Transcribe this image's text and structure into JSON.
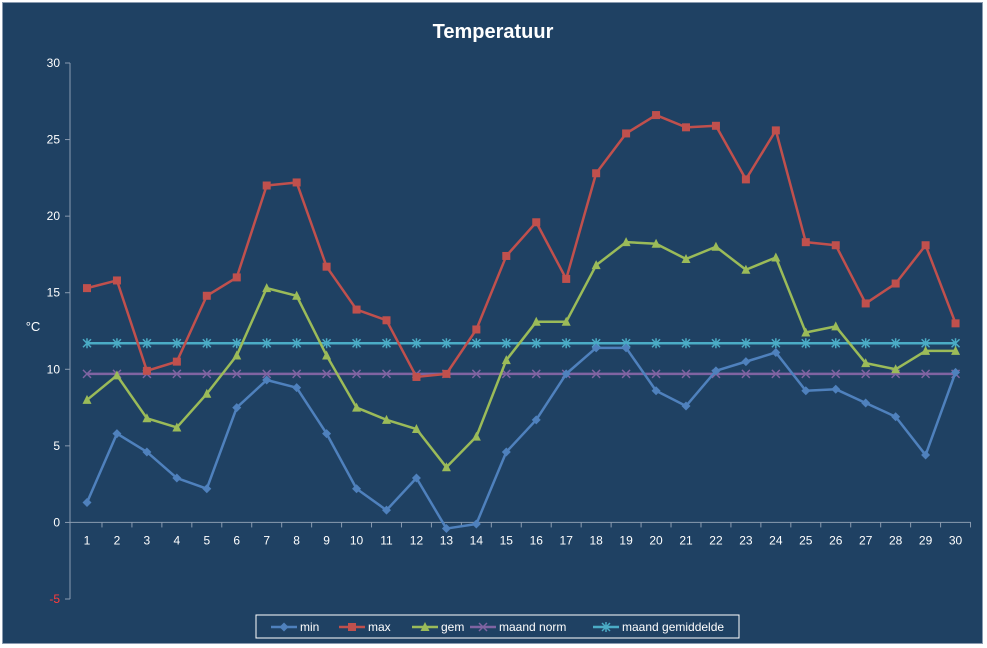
{
  "chart_data": {
    "type": "line",
    "title": "Temperatuur",
    "xlabel": "",
    "ylabel": "°C",
    "ylim": [
      -5,
      30
    ],
    "yticks": [
      30,
      25,
      20,
      15,
      10,
      5,
      0,
      -5
    ],
    "x": [
      1,
      2,
      3,
      4,
      5,
      6,
      7,
      8,
      9,
      10,
      11,
      12,
      13,
      14,
      15,
      16,
      17,
      18,
      19,
      20,
      21,
      22,
      23,
      24,
      25,
      26,
      27,
      28,
      29,
      30
    ],
    "grid": false,
    "legend_position": "bottom",
    "series": [
      {
        "name": "min",
        "color": "#4f81bd",
        "marker": "diamond",
        "values": [
          1.3,
          5.8,
          4.6,
          2.9,
          2.2,
          7.5,
          9.3,
          8.8,
          5.8,
          2.2,
          0.8,
          2.9,
          -0.4,
          -0.1,
          4.6,
          6.7,
          9.7,
          11.4,
          11.4,
          8.6,
          7.6,
          9.9,
          10.5,
          11.1,
          8.6,
          8.7,
          7.8,
          6.9,
          4.4,
          9.8
        ]
      },
      {
        "name": "max",
        "color": "#c0504d",
        "marker": "square",
        "values": [
          15.3,
          15.8,
          9.9,
          10.5,
          14.8,
          16.0,
          22.0,
          22.2,
          16.7,
          13.9,
          13.2,
          9.5,
          9.7,
          12.6,
          17.4,
          19.6,
          15.9,
          22.8,
          25.4,
          26.6,
          25.8,
          25.9,
          22.4,
          25.6,
          18.3,
          18.1,
          14.3,
          15.6,
          18.1,
          13.0
        ]
      },
      {
        "name": "gem",
        "color": "#9bbb59",
        "marker": "triangle",
        "values": [
          8.0,
          9.6,
          6.8,
          6.2,
          8.4,
          10.9,
          15.3,
          14.8,
          10.9,
          7.5,
          6.7,
          6.1,
          3.6,
          5.6,
          10.6,
          13.1,
          13.1,
          16.8,
          18.3,
          18.2,
          17.2,
          18.0,
          16.5,
          17.3,
          12.4,
          12.8,
          10.4,
          10.0,
          11.2,
          11.2
        ]
      },
      {
        "name": "maand norm",
        "color": "#8064a2",
        "marker": "x",
        "values": [
          9.7,
          9.7,
          9.7,
          9.7,
          9.7,
          9.7,
          9.7,
          9.7,
          9.7,
          9.7,
          9.7,
          9.7,
          9.7,
          9.7,
          9.7,
          9.7,
          9.7,
          9.7,
          9.7,
          9.7,
          9.7,
          9.7,
          9.7,
          9.7,
          9.7,
          9.7,
          9.7,
          9.7,
          9.7,
          9.7
        ]
      },
      {
        "name": "maand gemiddelde",
        "color": "#4bacc6",
        "marker": "star",
        "values": [
          11.7,
          11.7,
          11.7,
          11.7,
          11.7,
          11.7,
          11.7,
          11.7,
          11.7,
          11.7,
          11.7,
          11.7,
          11.7,
          11.7,
          11.7,
          11.7,
          11.7,
          11.7,
          11.7,
          11.7,
          11.7,
          11.7,
          11.7,
          11.7,
          11.7,
          11.7,
          11.7,
          11.7,
          11.7,
          11.7
        ]
      }
    ]
  }
}
